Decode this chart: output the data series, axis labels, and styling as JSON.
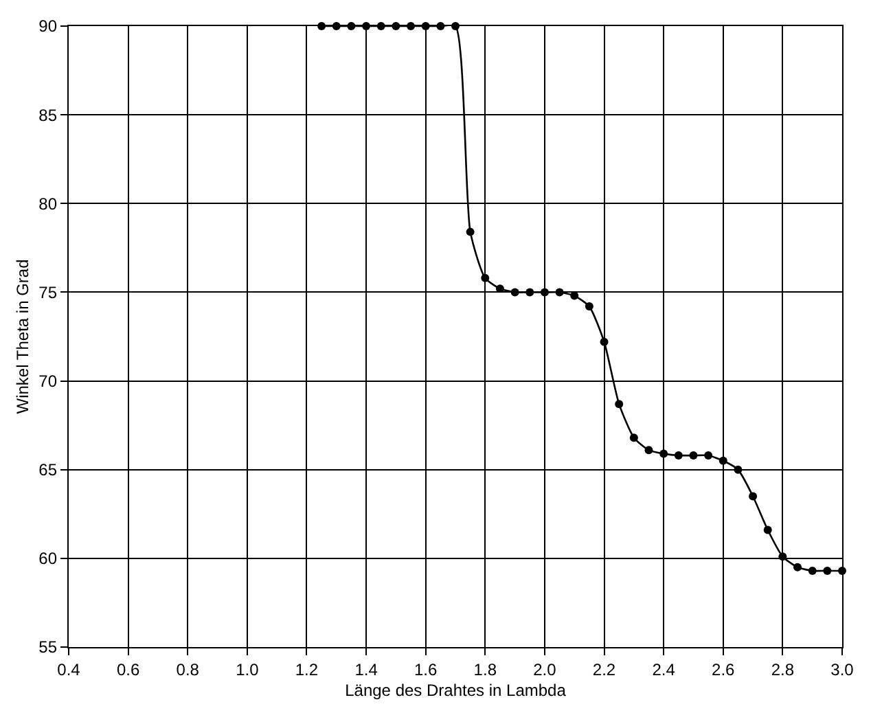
{
  "chart_data": {
    "type": "line",
    "xlabel": "Länge des Drahtes in Lambda",
    "ylabel": "Winkel Theta in Grad",
    "x": [
      1.25,
      1.3,
      1.35,
      1.4,
      1.45,
      1.5,
      1.55,
      1.6,
      1.65,
      1.7,
      1.75,
      1.8,
      1.85,
      1.9,
      1.95,
      2.0,
      2.05,
      2.1,
      2.15,
      2.2,
      2.25,
      2.3,
      2.35,
      2.4,
      2.45,
      2.5,
      2.55,
      2.6,
      2.65,
      2.7,
      2.75,
      2.8,
      2.85,
      2.9,
      2.95,
      3.0
    ],
    "series": [
      {
        "color": "#000000",
        "values": [
          90,
          90,
          90,
          90,
          90,
          90,
          90,
          90,
          90,
          90,
          78.4,
          75.8,
          75.2,
          75.0,
          75.0,
          75.0,
          75.0,
          74.8,
          74.2,
          72.2,
          68.7,
          66.8,
          66.1,
          65.9,
          65.8,
          65.8,
          65.8,
          65.5,
          65.0,
          63.5,
          61.6,
          60.1,
          59.5,
          59.3,
          59.3,
          59.3
        ]
      }
    ],
    "xlim": [
      0.4,
      3.0
    ],
    "xticks": [
      0.4,
      0.6,
      0.8,
      {
        "value": 1,
        "label": "1.0"
      },
      1.2,
      1.4,
      1.6,
      1.8,
      {
        "value": 2,
        "label": "2.0"
      },
      2.2,
      2.4,
      2.6,
      2.8,
      {
        "value": 3,
        "label": "3.0"
      }
    ],
    "ylim": [
      55,
      90
    ],
    "yticks": [
      55,
      60,
      65,
      70,
      75,
      80,
      85,
      90
    ],
    "grid": true,
    "marker": "circle",
    "line_style": "solid",
    "legend": false
  }
}
